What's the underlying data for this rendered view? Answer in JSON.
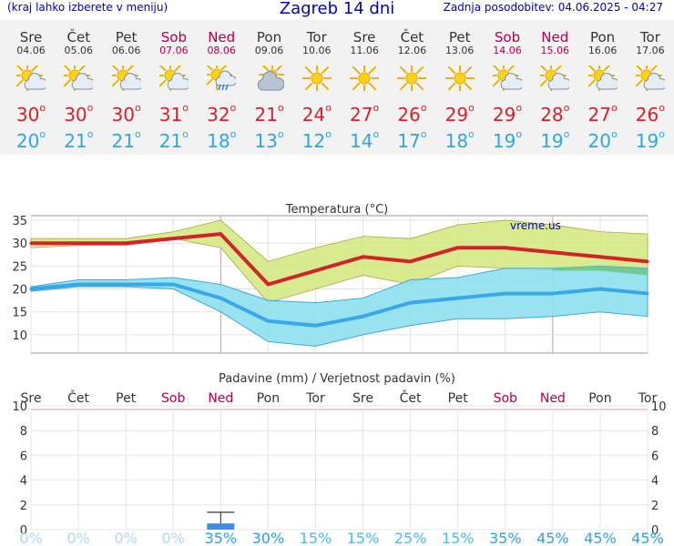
{
  "header": {
    "menu_note": "(kraj lahko izberete v meniju)",
    "title": "Zagreb 14 dni",
    "updated": "Zadnja posodobitev: 04.06.2025 - 04:27"
  },
  "days": [
    {
      "name": "Sre",
      "date": "04.06",
      "weekend": false,
      "icon": "sun-cloud-icon",
      "max": "30",
      "min": "20",
      "precip_prob": "0%"
    },
    {
      "name": "Čet",
      "date": "05.06",
      "weekend": false,
      "icon": "sun-cloud-icon",
      "max": "30",
      "min": "21",
      "precip_prob": "0%"
    },
    {
      "name": "Pet",
      "date": "06.06",
      "weekend": false,
      "icon": "sun-cloud-icon",
      "max": "30",
      "min": "21",
      "precip_prob": "0%"
    },
    {
      "name": "Sob",
      "date": "07.06",
      "weekend": true,
      "icon": "sun-cloud-icon",
      "max": "31",
      "min": "21",
      "precip_prob": "0%"
    },
    {
      "name": "Ned",
      "date": "08.06",
      "weekend": true,
      "icon": "sun-cloud-rain-icon",
      "max": "32",
      "min": "18",
      "precip_prob": "35%"
    },
    {
      "name": "Pon",
      "date": "09.06",
      "weekend": false,
      "icon": "cloud-sun-icon",
      "max": "21",
      "min": "13",
      "precip_prob": "30%"
    },
    {
      "name": "Tor",
      "date": "10.06",
      "weekend": false,
      "icon": "sun-icon",
      "max": "24",
      "min": "12",
      "precip_prob": "15%"
    },
    {
      "name": "Sre",
      "date": "11.06",
      "weekend": false,
      "icon": "sun-icon",
      "max": "27",
      "min": "14",
      "precip_prob": "15%"
    },
    {
      "name": "Čet",
      "date": "12.06",
      "weekend": false,
      "icon": "sun-icon",
      "max": "26",
      "min": "17",
      "precip_prob": "25%"
    },
    {
      "name": "Pet",
      "date": "13.06",
      "weekend": false,
      "icon": "sun-icon",
      "max": "29",
      "min": "18",
      "precip_prob": "15%"
    },
    {
      "name": "Sob",
      "date": "14.06",
      "weekend": true,
      "icon": "sun-cloud-icon",
      "max": "29",
      "min": "19",
      "precip_prob": "35%"
    },
    {
      "name": "Ned",
      "date": "15.06",
      "weekend": true,
      "icon": "sun-cloud-icon",
      "max": "28",
      "min": "19",
      "precip_prob": "45%"
    },
    {
      "name": "Pon",
      "date": "16.06",
      "weekend": false,
      "icon": "sun-cloud-icon",
      "max": "27",
      "min": "20",
      "precip_prob": "45%"
    },
    {
      "name": "Tor",
      "date": "17.06",
      "weekend": false,
      "icon": "sun-cloud-icon",
      "max": "26",
      "min": "19",
      "precip_prob": "45%"
    }
  ],
  "chart_data": [
    {
      "type": "line",
      "title": "Temperatura (°C)",
      "watermark": "vreme.us",
      "x": [
        "04.06",
        "05.06",
        "06.06",
        "07.06",
        "08.06",
        "09.06",
        "10.06",
        "11.06",
        "12.06",
        "13.06",
        "14.06",
        "15.06",
        "16.06",
        "17.06"
      ],
      "ylim": [
        6,
        36
      ],
      "yticks": [
        "10",
        "15",
        "20",
        "25",
        "30",
        "35"
      ],
      "grid": true,
      "series": [
        {
          "role": "max",
          "values": [
            30,
            30,
            30,
            31,
            32,
            21,
            24,
            27,
            26,
            29,
            29,
            28,
            27,
            26
          ],
          "color": "#d2232a"
        },
        {
          "role": "min",
          "values": [
            20,
            21,
            21,
            21,
            18,
            13,
            12,
            14,
            17,
            18,
            19,
            19,
            20,
            19
          ],
          "color": "#38a8e8"
        }
      ],
      "bands": [
        {
          "role": "max-range",
          "upper": [
            31,
            31,
            31,
            32.5,
            35,
            26,
            29,
            31.5,
            31,
            34,
            35,
            34,
            32.5,
            32
          ],
          "lower": [
            29,
            29.5,
            29.5,
            31,
            29,
            17,
            20,
            23,
            21,
            25,
            24.5,
            24,
            24,
            23
          ],
          "color": "#d6ea8a"
        },
        {
          "role": "min-range",
          "upper": [
            20.5,
            22,
            22,
            22.5,
            21,
            17.5,
            17,
            18,
            22,
            22.5,
            24.5,
            24.5,
            25,
            24.5
          ],
          "lower": [
            19.5,
            20.5,
            20.5,
            20,
            15,
            8.5,
            7.5,
            10,
            12,
            13.5,
            13.5,
            14,
            15,
            14
          ],
          "color": "#8fe0ef"
        }
      ],
      "overlap_color": "#6ec88a"
    },
    {
      "type": "bar",
      "title": "Padavine (mm) / Verjetnost padavin (%)",
      "categories": [
        "Sre",
        "Čet",
        "Pet",
        "Sob",
        "Ned",
        "Pon",
        "Tor",
        "Sre",
        "Čet",
        "Pet",
        "Sob",
        "Ned",
        "Pon",
        "Tor"
      ],
      "values": [
        0,
        0,
        0,
        0,
        0.5,
        0,
        0,
        0,
        0,
        0,
        0,
        0,
        0,
        0
      ],
      "error_high": [
        0,
        0,
        0,
        0,
        1.4,
        0,
        0,
        0,
        0,
        0,
        0,
        0,
        0,
        0
      ],
      "ylim": [
        0,
        10
      ],
      "yticks": [
        "0",
        "2",
        "4",
        "6",
        "8",
        "10"
      ],
      "grid": true,
      "bar_color": "#3b8ee8"
    }
  ]
}
